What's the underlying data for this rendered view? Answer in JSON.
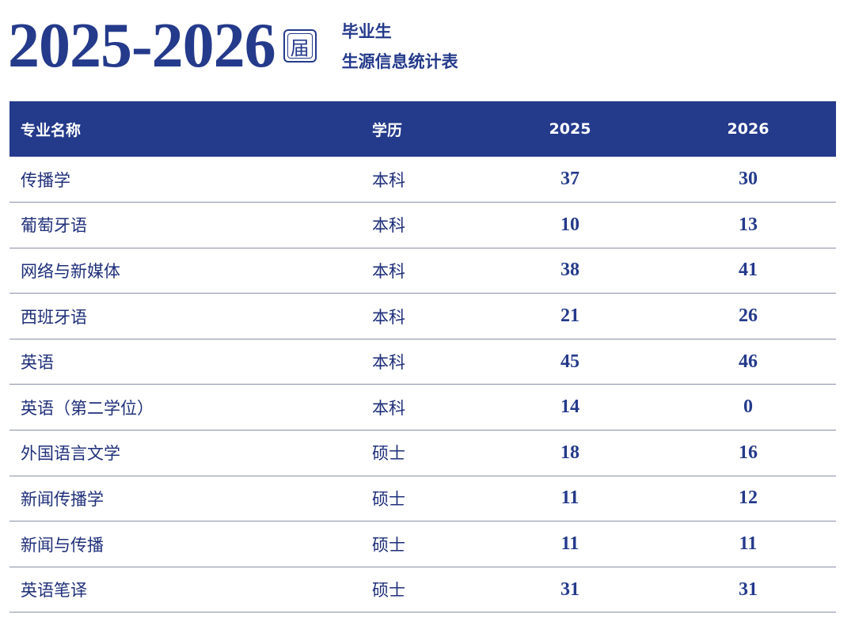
{
  "header": {
    "year_range": "2025-2026",
    "jie": "届",
    "subtitle_line1": "毕业生",
    "subtitle_line2": "生源信息统计表"
  },
  "table": {
    "columns": [
      "专业名称",
      "学历",
      "2025",
      "2026"
    ],
    "rows": [
      {
        "major": "传播学",
        "degree": "本科",
        "y2025": "37",
        "y2026": "30"
      },
      {
        "major": "葡萄牙语",
        "degree": "本科",
        "y2025": "10",
        "y2026": "13"
      },
      {
        "major": "网络与新媒体",
        "degree": "本科",
        "y2025": "38",
        "y2026": "41"
      },
      {
        "major": "西班牙语",
        "degree": "本科",
        "y2025": "21",
        "y2026": "26"
      },
      {
        "major": "英语",
        "degree": "本科",
        "y2025": "45",
        "y2026": "46"
      },
      {
        "major": "英语（第二学位）",
        "degree": "本科",
        "y2025": "14",
        "y2026": "0"
      },
      {
        "major": "外国语言文学",
        "degree": "硕士",
        "y2025": "18",
        "y2026": "16"
      },
      {
        "major": "新闻传播学",
        "degree": "硕士",
        "y2025": "11",
        "y2026": "12"
      },
      {
        "major": "新闻与传播",
        "degree": "硕士",
        "y2025": "11",
        "y2026": "11"
      },
      {
        "major": "英语笔译",
        "degree": "硕士",
        "y2025": "31",
        "y2026": "31"
      }
    ]
  }
}
